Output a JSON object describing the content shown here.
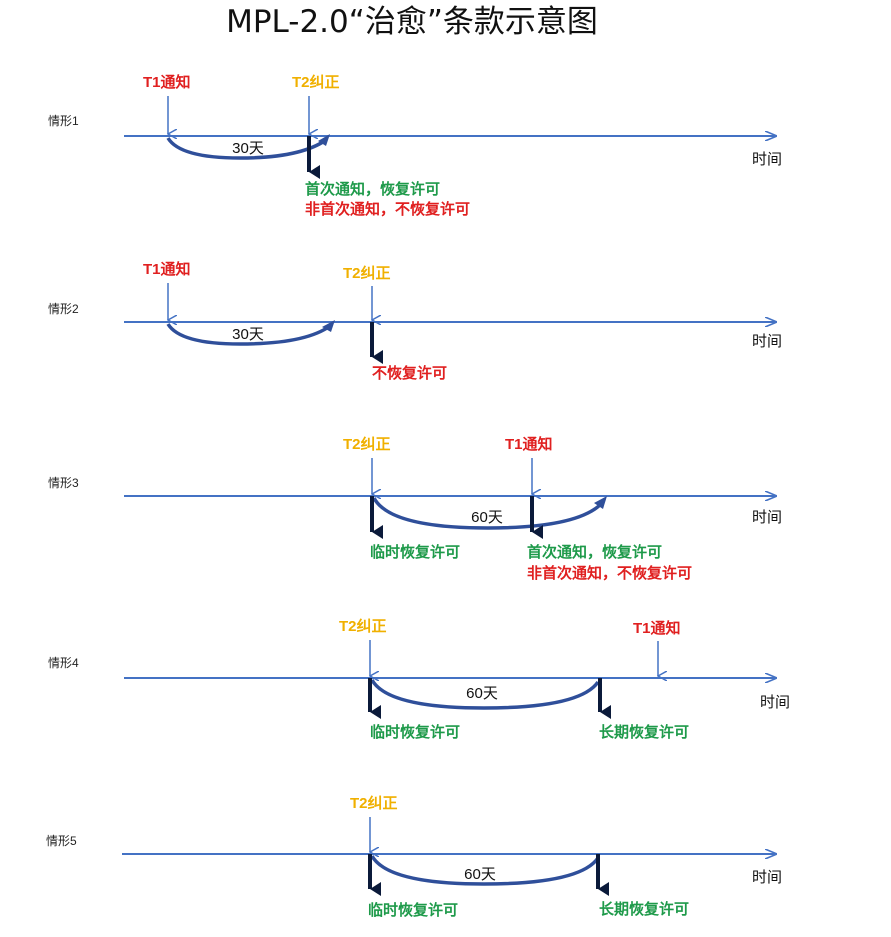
{
  "title": "MPL-2.0“治愈”条款示意图",
  "axis_label": "时间",
  "scenarios": [
    {
      "name": "情形1",
      "events": [
        {
          "label": "T1通知",
          "color": "red"
        },
        {
          "label": "T2纠正",
          "color": "yellow"
        }
      ],
      "interval": "30天",
      "outcomes": [
        {
          "text": "首次通知，恢复许可",
          "color": "green"
        },
        {
          "text": "非首次通知，不恢复许可",
          "color": "red"
        }
      ]
    },
    {
      "name": "情形2",
      "events": [
        {
          "label": "T1通知",
          "color": "red"
        },
        {
          "label": "T2纠正",
          "color": "yellow"
        }
      ],
      "interval": "30天",
      "outcomes": [
        {
          "text": "不恢复许可",
          "color": "red"
        }
      ]
    },
    {
      "name": "情形3",
      "events": [
        {
          "label": "T2纠正",
          "color": "yellow"
        },
        {
          "label": "T1通知",
          "color": "red"
        }
      ],
      "interval": "60天",
      "outcomes": [
        {
          "text": "临时恢复许可",
          "color": "green"
        },
        {
          "text": "首次通知，恢复许可",
          "color": "green"
        },
        {
          "text": "非首次通知，不恢复许可",
          "color": "red"
        }
      ]
    },
    {
      "name": "情形4",
      "events": [
        {
          "label": "T2纠正",
          "color": "yellow"
        },
        {
          "label": "T1通知",
          "color": "red"
        }
      ],
      "interval": "60天",
      "outcomes": [
        {
          "text": "临时恢复许可",
          "color": "green"
        },
        {
          "text": "长期恢复许可",
          "color": "green"
        }
      ]
    },
    {
      "name": "情形5",
      "events": [
        {
          "label": "T2纠正",
          "color": "yellow"
        }
      ],
      "interval": "60天",
      "outcomes": [
        {
          "text": "临时恢复许可",
          "color": "green"
        },
        {
          "text": "长期恢复许可",
          "color": "green"
        }
      ]
    }
  ],
  "colors": {
    "axis": "#4472c4",
    "curve": "#2f4f9a",
    "red": "#e02020",
    "yellow": "#f0b000",
    "green": "#1e9a4a"
  }
}
